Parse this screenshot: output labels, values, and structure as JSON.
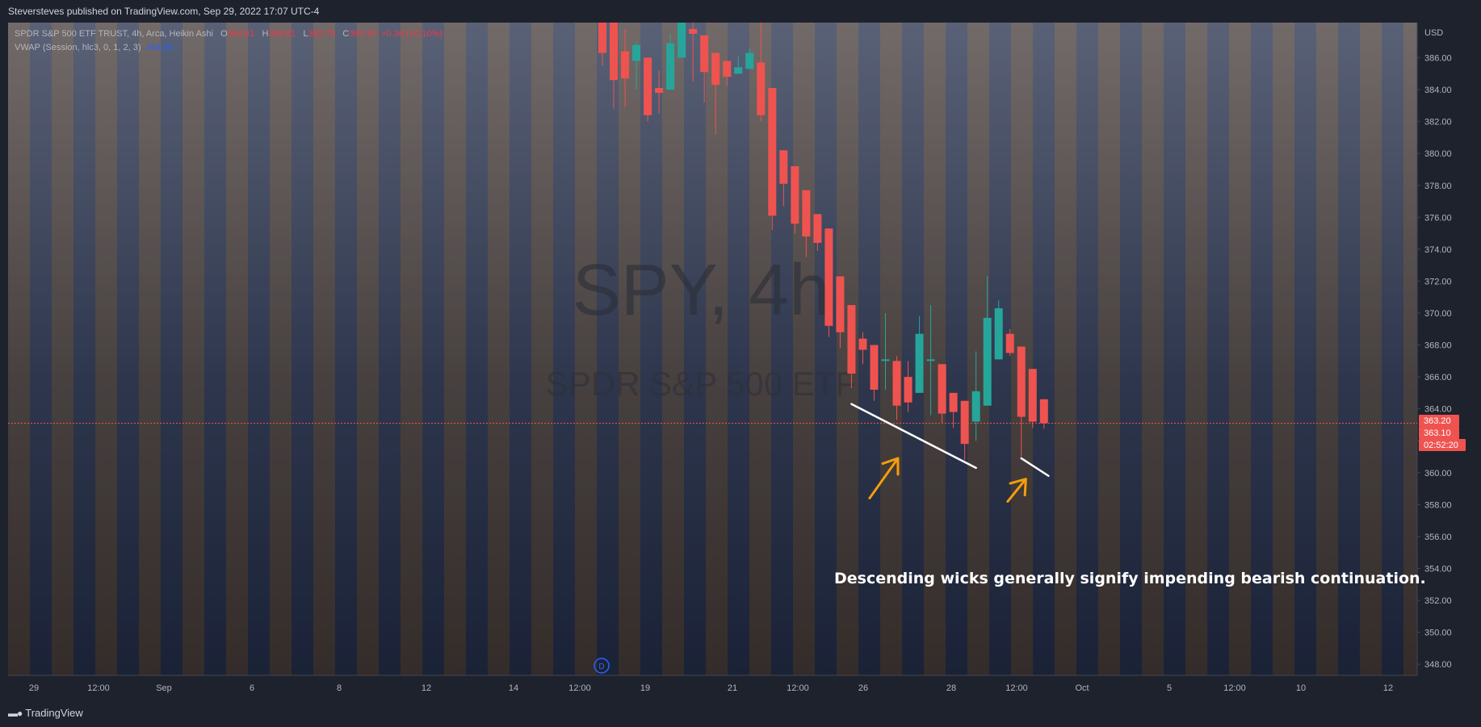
{
  "header": {
    "publisher": "Steversteves published on TradingView.com, Sep 29, 2022 17:07 UTC-4"
  },
  "legend": {
    "symbol": "SPDR S&P 500 ETF TRUST, 4h, Arca, Heikin Ashi",
    "o_label": "O",
    "o_value": "364.61",
    "h_label": "H",
    "h_value": "364.61",
    "l_label": "L",
    "l_value": "362.75",
    "c_label": "C",
    "c_value": "363.10",
    "change": "+0.36 (+0.10%)",
    "vwap_label": "VWAP (Session, hlc3, 0, 1, 2, 3)",
    "vwap_value": "363.65"
  },
  "watermark": {
    "symbol": "SPY, 4h",
    "name": "SPDR S&P 500 ETF"
  },
  "footer": {
    "brand": "TradingView"
  },
  "colors": {
    "up": "#26a69a",
    "down": "#ef5350",
    "background": "#1e222d",
    "annotation": "#f59e0b",
    "trendline": "#ffffff",
    "price_line": "#ef5350"
  },
  "chart_data": {
    "type": "candlestick",
    "chart_style": "Heikin Ashi",
    "currency": "USD",
    "ylim": [
      347.3,
      388.2
    ],
    "y_ticks": [
      348,
      350,
      352,
      354,
      356,
      358,
      360,
      362,
      364,
      366,
      368,
      370,
      372,
      374,
      376,
      378,
      380,
      382,
      384,
      386
    ],
    "x_labels": [
      "29",
      "12:00",
      "Sep",
      "6",
      "8",
      "12",
      "14",
      "12:00",
      "19",
      "21",
      "12:00",
      "26",
      "28",
      "12:00",
      "Oct",
      "5",
      "12:00",
      "10",
      "12"
    ],
    "current_price": 363.1,
    "price_badges": [
      "363.20",
      "363.10",
      "02:52:20"
    ],
    "axis_covered_label": "362.00",
    "candles": [
      {
        "open": 388.8,
        "close": 386.3,
        "high": 388.8,
        "low": 385.5
      },
      {
        "open": 388.8,
        "close": 384.6,
        "high": 388.8,
        "low": 382.8
      },
      {
        "open": 386.4,
        "close": 384.7,
        "high": 387.8,
        "low": 382.9
      },
      {
        "open": 385.8,
        "close": 386.8,
        "high": 387.0,
        "low": 384.0
      },
      {
        "open": 386.0,
        "close": 382.4,
        "high": 386.0,
        "low": 382.0
      },
      {
        "open": 384.1,
        "close": 383.8,
        "high": 385.2,
        "low": 382.5
      },
      {
        "open": 384.0,
        "close": 386.9,
        "high": 387.5,
        "low": 384.0
      },
      {
        "open": 386.0,
        "close": 389.0,
        "high": 389.0,
        "low": 386.0
      },
      {
        "open": 387.8,
        "close": 387.5,
        "high": 388.8,
        "low": 384.5
      },
      {
        "open": 387.4,
        "close": 385.1,
        "high": 387.4,
        "low": 383.2
      },
      {
        "open": 386.3,
        "close": 384.3,
        "high": 386.3,
        "low": 381.2
      },
      {
        "open": 385.8,
        "close": 384.8,
        "high": 385.8,
        "low": 384.2
      },
      {
        "open": 385.0,
        "close": 385.4,
        "high": 386.1,
        "low": 385.0
      },
      {
        "open": 385.3,
        "close": 386.3,
        "high": 386.6,
        "low": 385.3
      },
      {
        "open": 385.7,
        "close": 382.4,
        "high": 389.0,
        "low": 382.0
      },
      {
        "open": 384.1,
        "close": 376.1,
        "high": 384.1,
        "low": 375.2
      },
      {
        "open": 380.2,
        "close": 378.1,
        "high": 380.2,
        "low": 376.7
      },
      {
        "open": 379.2,
        "close": 375.6,
        "high": 379.2,
        "low": 375.0
      },
      {
        "open": 377.7,
        "close": 374.8,
        "high": 377.7,
        "low": 373.5
      },
      {
        "open": 376.2,
        "close": 374.4,
        "high": 376.2,
        "low": 373.9
      },
      {
        "open": 375.3,
        "close": 369.2,
        "high": 375.3,
        "low": 368.5
      },
      {
        "open": 372.3,
        "close": 368.8,
        "high": 372.3,
        "low": 367.8
      },
      {
        "open": 370.5,
        "close": 366.2,
        "high": 370.5,
        "low": 365.3
      },
      {
        "open": 368.4,
        "close": 367.7,
        "high": 368.8,
        "low": 366.8
      },
      {
        "open": 368.0,
        "close": 365.2,
        "high": 368.0,
        "low": 364.5
      },
      {
        "open": 367.0,
        "close": 367.1,
        "high": 370.0,
        "low": 365.2
      },
      {
        "open": 367.0,
        "close": 364.2,
        "high": 367.3,
        "low": 363.3
      },
      {
        "open": 366.0,
        "close": 364.4,
        "high": 367.0,
        "low": 363.8
      },
      {
        "open": 365.0,
        "close": 368.7,
        "high": 369.8,
        "low": 365.0
      },
      {
        "open": 367.0,
        "close": 367.1,
        "high": 370.5,
        "low": 363.6
      },
      {
        "open": 366.8,
        "close": 363.7,
        "high": 366.8,
        "low": 363.1
      },
      {
        "open": 365.0,
        "close": 363.8,
        "high": 365.0,
        "low": 362.8
      },
      {
        "open": 364.5,
        "close": 361.8,
        "high": 364.5,
        "low": 360.8
      },
      {
        "open": 363.2,
        "close": 365.1,
        "high": 367.6,
        "low": 362.0
      },
      {
        "open": 364.2,
        "close": 369.7,
        "high": 372.3,
        "low": 364.2
      },
      {
        "open": 367.1,
        "close": 370.3,
        "high": 370.8,
        "low": 367.1
      },
      {
        "open": 368.7,
        "close": 367.5,
        "high": 369.0,
        "low": 367.3
      },
      {
        "open": 367.9,
        "close": 363.5,
        "high": 367.9,
        "low": 361.0
      },
      {
        "open": 366.5,
        "close": 363.2,
        "high": 366.5,
        "low": 362.8
      },
      {
        "open": 364.6,
        "close": 363.1,
        "high": 364.6,
        "low": 362.75
      }
    ],
    "trendlines": [
      {
        "from": {
          "candle": 22,
          "price": 364.3
        },
        "to": {
          "candle": 33,
          "price": 360.3
        }
      },
      {
        "from": {
          "candle": 37,
          "price": 360.9
        },
        "to": {
          "candle": 39.4,
          "price": 359.8
        }
      }
    ],
    "arrows": [
      {
        "from": {
          "candle": 23.6,
          "price": 358.4
        },
        "to": {
          "candle": 26.1,
          "price": 360.9
        }
      },
      {
        "from": {
          "candle": 35.8,
          "price": 358.2
        },
        "to": {
          "candle": 37.4,
          "price": 359.6
        }
      }
    ],
    "annotation": "Descending wicks generally signify impending bearish continuation.",
    "session_marker": "D"
  }
}
